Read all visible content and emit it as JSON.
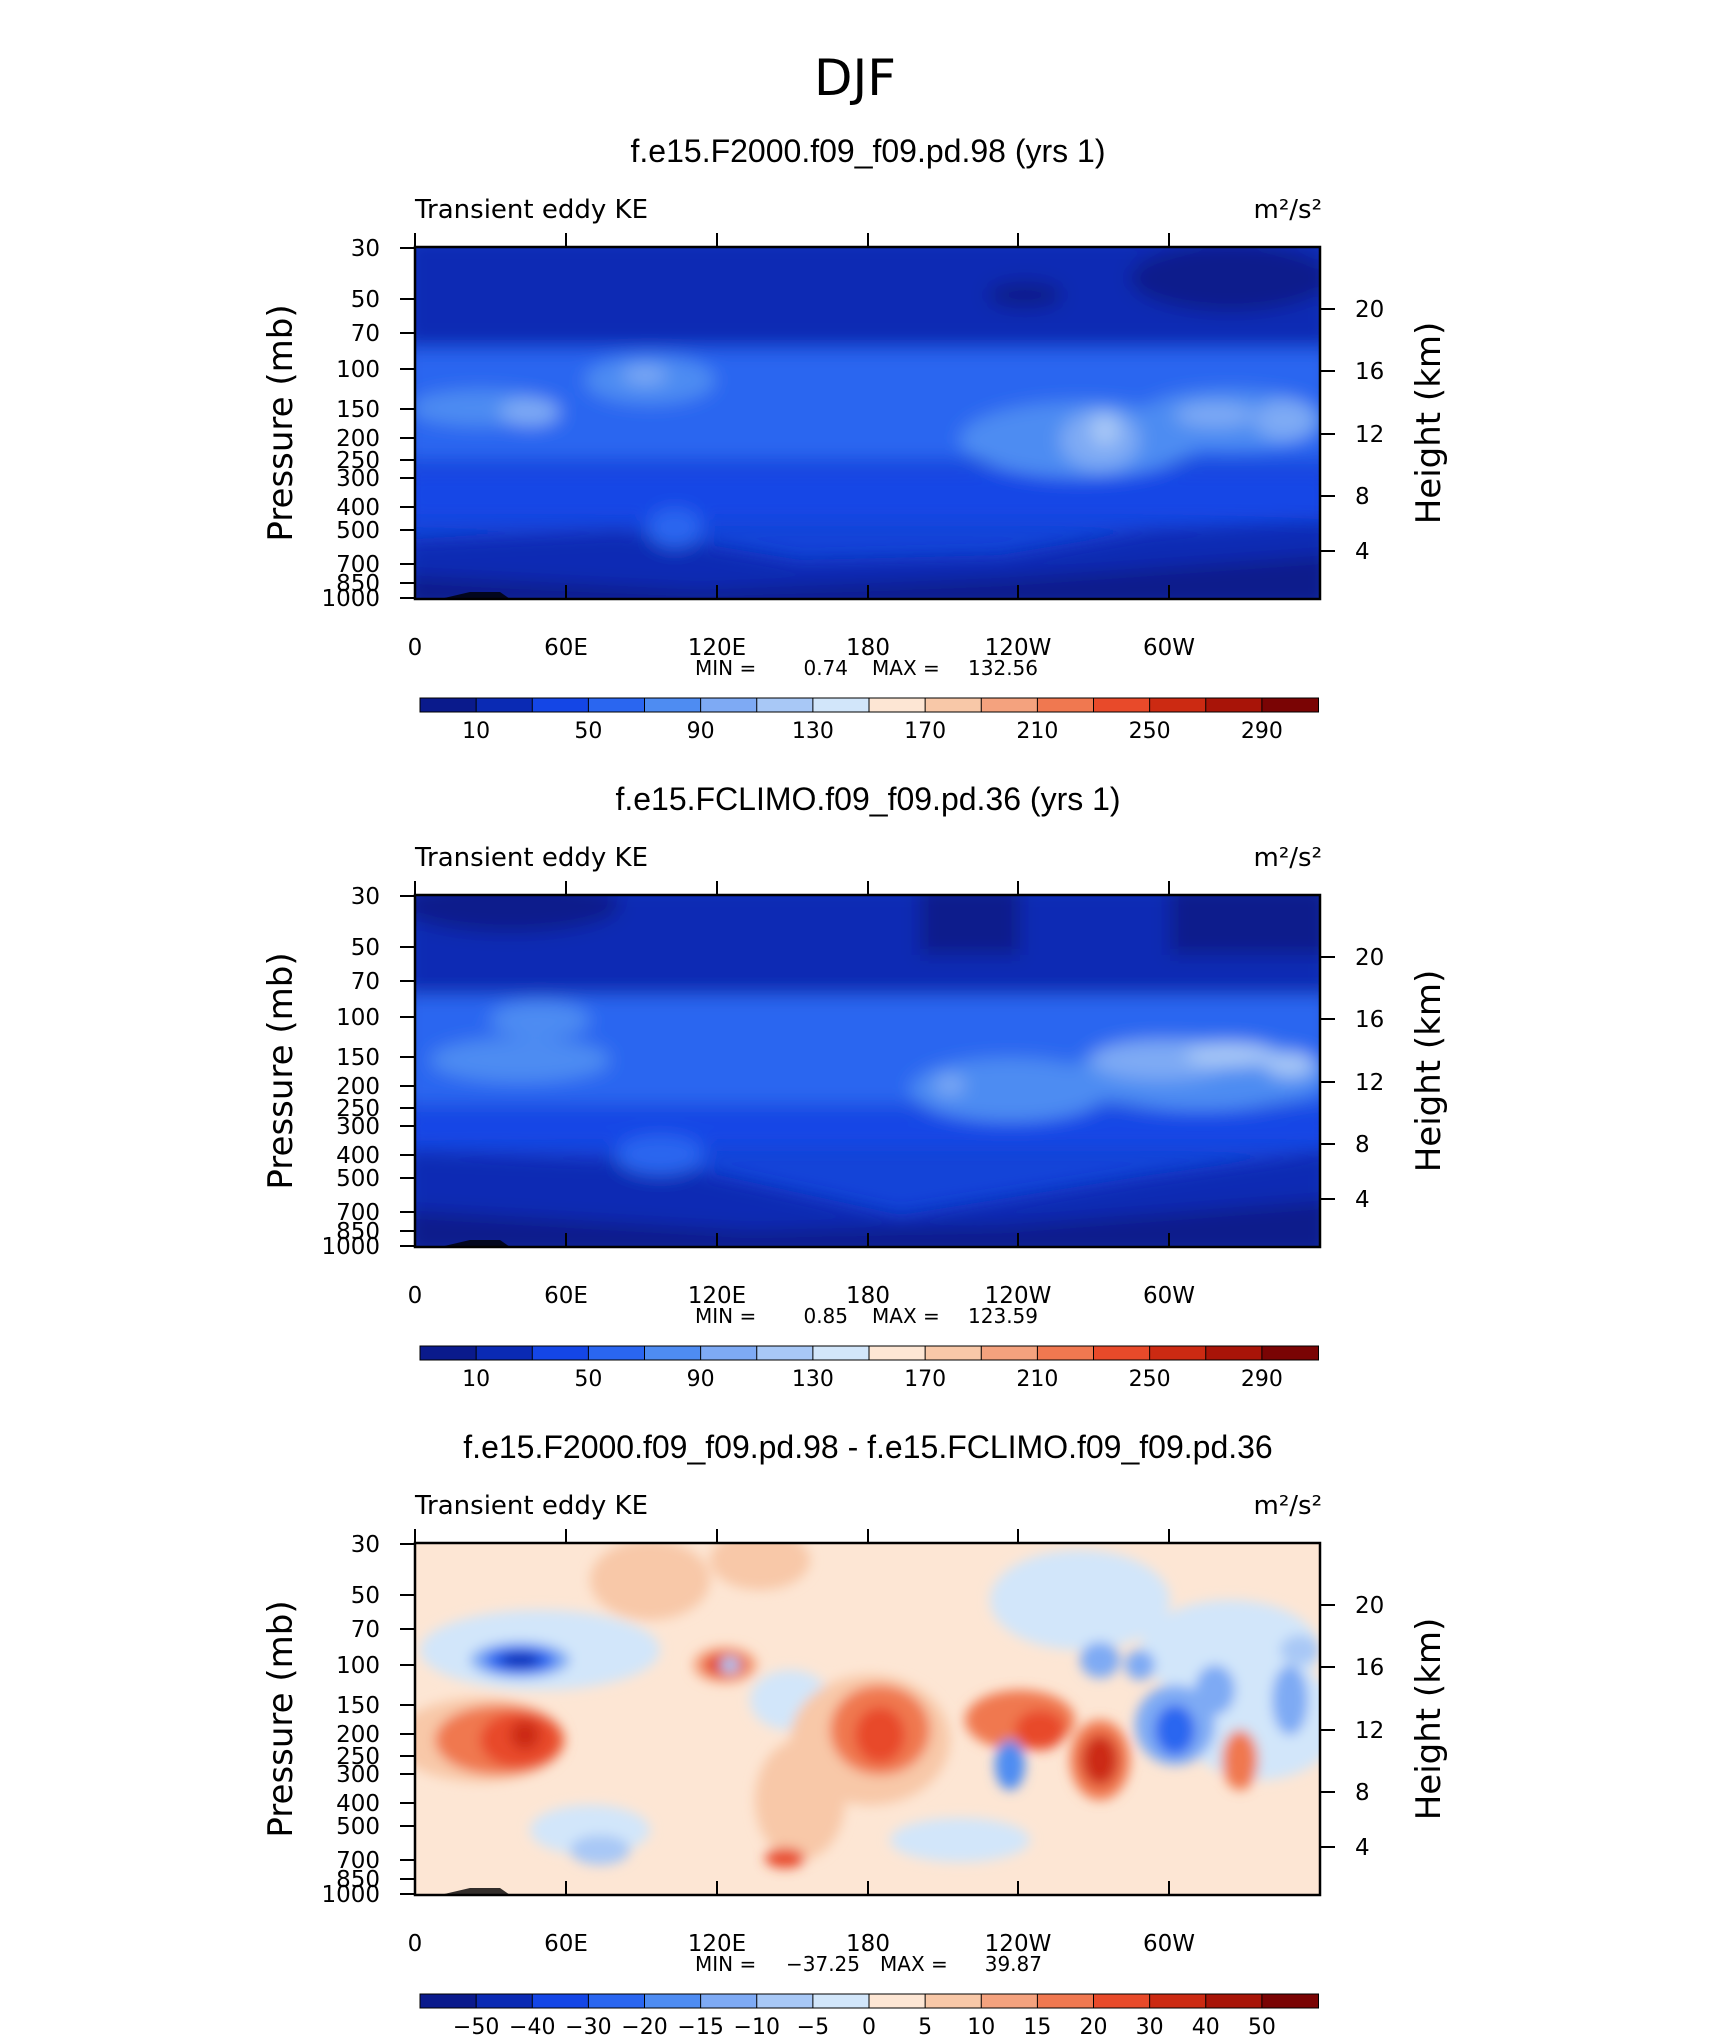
{
  "figure": {
    "title": "DJF",
    "units_label": "m²/s²"
  },
  "chart_data": [
    {
      "type": "heatmap",
      "title": "f.e15.F2000.f09_f09.pd.98 (yrs 1)",
      "subtitle": "Transient eddy KE",
      "units": "m²/s²",
      "xlabel": "",
      "ylabel": "Pressure (mb)",
      "y2label": "Height (km)",
      "x_ticks": [
        "0",
        "60E",
        "120E",
        "180",
        "120W",
        "60W"
      ],
      "y_ticks": [
        "30",
        "50",
        "70",
        "100",
        "150",
        "200",
        "250",
        "300",
        "400",
        "500",
        "700",
        "850",
        "1000"
      ],
      "y2_ticks": [
        "20",
        "16",
        "12",
        "8",
        "4"
      ],
      "min_text": "MIN =",
      "min_value": "0.74",
      "max_text": "MAX =",
      "max_value": "132.56",
      "colorbar_labels": [
        "10",
        "50",
        "90",
        "130",
        "170",
        "210",
        "250",
        "290"
      ],
      "colorbar_colors": [
        "#0a1a8c",
        "#0a2ab4",
        "#1446e6",
        "#2a66f0",
        "#4e8cf2",
        "#7eaaf4",
        "#a8c8f6",
        "#d2e6fa",
        "#fde6d4",
        "#f8c8a8",
        "#f4a27e",
        "#f07850",
        "#e84a2a",
        "#cc2a12",
        "#a81408",
        "#7a0404"
      ],
      "value_range": [
        0.74,
        132.56
      ]
    },
    {
      "type": "heatmap",
      "title": "f.e15.FCLIMO.f09_f09.pd.36 (yrs 1)",
      "subtitle": "Transient eddy KE",
      "units": "m²/s²",
      "xlabel": "",
      "ylabel": "Pressure (mb)",
      "y2label": "Height (km)",
      "x_ticks": [
        "0",
        "60E",
        "120E",
        "180",
        "120W",
        "60W"
      ],
      "y_ticks": [
        "30",
        "50",
        "70",
        "100",
        "150",
        "200",
        "250",
        "300",
        "400",
        "500",
        "700",
        "850",
        "1000"
      ],
      "y2_ticks": [
        "20",
        "16",
        "12",
        "8",
        "4"
      ],
      "min_text": "MIN =",
      "min_value": "0.85",
      "max_text": "MAX =",
      "max_value": "123.59",
      "colorbar_labels": [
        "10",
        "50",
        "90",
        "130",
        "170",
        "210",
        "250",
        "290"
      ],
      "colorbar_colors": [
        "#0a1a8c",
        "#0a2ab4",
        "#1446e6",
        "#2a66f0",
        "#4e8cf2",
        "#7eaaf4",
        "#a8c8f6",
        "#d2e6fa",
        "#fde6d4",
        "#f8c8a8",
        "#f4a27e",
        "#f07850",
        "#e84a2a",
        "#cc2a12",
        "#a81408",
        "#7a0404"
      ],
      "value_range": [
        0.85,
        123.59
      ]
    },
    {
      "type": "heatmap",
      "title": "f.e15.F2000.f09_f09.pd.98 - f.e15.FCLIMO.f09_f09.pd.36",
      "subtitle": "Transient eddy KE",
      "units": "m²/s²",
      "xlabel": "",
      "ylabel": "Pressure (mb)",
      "y2label": "Height (km)",
      "x_ticks": [
        "0",
        "60E",
        "120E",
        "180",
        "120W",
        "60W"
      ],
      "y_ticks": [
        "30",
        "50",
        "70",
        "100",
        "150",
        "200",
        "250",
        "300",
        "400",
        "500",
        "700",
        "850",
        "1000"
      ],
      "y2_ticks": [
        "20",
        "16",
        "12",
        "8",
        "4"
      ],
      "min_text": "MIN =",
      "min_value": "−37.25",
      "max_text": "MAX =",
      "max_value": "39.87",
      "colorbar_labels": [
        "−50",
        "−40",
        "−30",
        "−20",
        "−15",
        "−10",
        "−5",
        "0",
        "5",
        "10",
        "15",
        "20",
        "30",
        "40",
        "50"
      ],
      "colorbar_colors": [
        "#0a1a8c",
        "#0a2ab4",
        "#1446e6",
        "#2a66f0",
        "#4e8cf2",
        "#7eaaf4",
        "#a8c8f6",
        "#d2e6fa",
        "#fde6d4",
        "#f8c8a8",
        "#f4a27e",
        "#f07850",
        "#e84a2a",
        "#cc2a12",
        "#a81408",
        "#7a0404"
      ],
      "value_range": [
        -37.25,
        39.87
      ]
    }
  ]
}
